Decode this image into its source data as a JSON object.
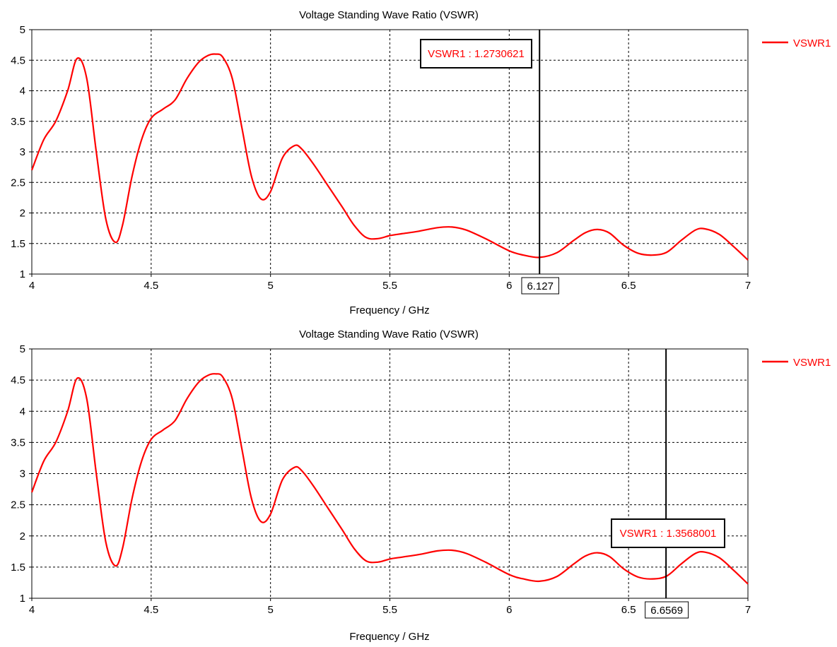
{
  "charts": [
    {
      "title": "Voltage Standing Wave Ratio (VSWR)",
      "xlabel": "Frequency / GHz",
      "legend": "VSWR1",
      "marker": {
        "label": "VSWR1 : 1.2730621",
        "x_label": "6.127"
      }
    },
    {
      "title": "Voltage Standing Wave Ratio (VSWR)",
      "xlabel": "Frequency / GHz",
      "legend": "VSWR1",
      "marker": {
        "label": "VSWR1 : 1.3568001",
        "x_label": "6.6569"
      }
    }
  ],
  "chart_data": [
    {
      "type": "line",
      "title": "Voltage Standing Wave Ratio (VSWR)",
      "xlabel": "Frequency / GHz",
      "ylabel": "",
      "xlim": [
        4,
        7
      ],
      "ylim": [
        1,
        5
      ],
      "x_ticks": [
        "4",
        "4.5",
        "5",
        "5.5",
        "6",
        "6.5",
        "7"
      ],
      "y_ticks": [
        "1",
        "1.5",
        "2",
        "2.5",
        "3",
        "3.5",
        "4",
        "4.5",
        "5"
      ],
      "grid": true,
      "legend_position": "right",
      "line_color": "#ff0000",
      "series": [
        {
          "name": "VSWR1",
          "x": [
            4.0,
            4.05,
            4.1,
            4.15,
            4.19,
            4.23,
            4.27,
            4.31,
            4.35,
            4.38,
            4.42,
            4.46,
            4.5,
            4.55,
            4.6,
            4.65,
            4.7,
            4.74,
            4.77,
            4.8,
            4.84,
            4.88,
            4.92,
            4.96,
            5.0,
            5.05,
            5.1,
            5.13,
            5.18,
            5.24,
            5.3,
            5.35,
            5.4,
            5.45,
            5.5,
            5.55,
            5.62,
            5.7,
            5.76,
            5.82,
            5.9,
            6.0,
            6.06,
            6.127,
            6.2,
            6.27,
            6.32,
            6.37,
            6.42,
            6.48,
            6.54,
            6.6,
            6.66,
            6.72,
            6.78,
            6.82,
            6.88,
            6.94,
            7.0
          ],
          "y": [
            2.7,
            3.2,
            3.5,
            4.0,
            4.53,
            4.2,
            3.0,
            1.9,
            1.52,
            1.8,
            2.6,
            3.2,
            3.55,
            3.7,
            3.85,
            4.2,
            4.47,
            4.58,
            4.6,
            4.55,
            4.2,
            3.4,
            2.6,
            2.23,
            2.35,
            2.9,
            3.1,
            3.05,
            2.8,
            2.45,
            2.1,
            1.8,
            1.6,
            1.58,
            1.63,
            1.66,
            1.7,
            1.76,
            1.77,
            1.72,
            1.58,
            1.38,
            1.31,
            1.273,
            1.35,
            1.55,
            1.68,
            1.73,
            1.67,
            1.47,
            1.34,
            1.31,
            1.357,
            1.55,
            1.72,
            1.74,
            1.65,
            1.45,
            1.23
          ]
        }
      ],
      "marker": {
        "x": 6.127,
        "y": 1.2730621,
        "label": "VSWR1 : 1.2730621",
        "x_label": "6.127"
      }
    },
    {
      "type": "line",
      "title": "Voltage Standing Wave Ratio (VSWR)",
      "xlabel": "Frequency / GHz",
      "ylabel": "",
      "xlim": [
        4,
        7
      ],
      "ylim": [
        1,
        5
      ],
      "x_ticks": [
        "4",
        "4.5",
        "5",
        "5.5",
        "6",
        "6.5",
        "7"
      ],
      "y_ticks": [
        "1",
        "1.5",
        "2",
        "2.5",
        "3",
        "3.5",
        "4",
        "4.5",
        "5"
      ],
      "grid": true,
      "legend_position": "right",
      "line_color": "#ff0000",
      "series": [
        {
          "name": "VSWR1",
          "x": [
            4.0,
            4.05,
            4.1,
            4.15,
            4.19,
            4.23,
            4.27,
            4.31,
            4.35,
            4.38,
            4.42,
            4.46,
            4.5,
            4.55,
            4.6,
            4.65,
            4.7,
            4.74,
            4.77,
            4.8,
            4.84,
            4.88,
            4.92,
            4.96,
            5.0,
            5.05,
            5.1,
            5.13,
            5.18,
            5.24,
            5.3,
            5.35,
            5.4,
            5.45,
            5.5,
            5.55,
            5.62,
            5.7,
            5.76,
            5.82,
            5.9,
            6.0,
            6.06,
            6.127,
            6.2,
            6.27,
            6.32,
            6.37,
            6.42,
            6.48,
            6.54,
            6.6,
            6.66,
            6.72,
            6.78,
            6.82,
            6.88,
            6.94,
            7.0
          ],
          "y": [
            2.7,
            3.2,
            3.5,
            4.0,
            4.53,
            4.2,
            3.0,
            1.9,
            1.52,
            1.8,
            2.6,
            3.2,
            3.55,
            3.7,
            3.85,
            4.2,
            4.47,
            4.58,
            4.6,
            4.55,
            4.2,
            3.4,
            2.6,
            2.23,
            2.35,
            2.9,
            3.1,
            3.05,
            2.8,
            2.45,
            2.1,
            1.8,
            1.6,
            1.58,
            1.63,
            1.66,
            1.7,
            1.76,
            1.77,
            1.72,
            1.58,
            1.38,
            1.31,
            1.273,
            1.35,
            1.55,
            1.68,
            1.73,
            1.67,
            1.47,
            1.34,
            1.31,
            1.357,
            1.55,
            1.72,
            1.74,
            1.65,
            1.45,
            1.23
          ]
        }
      ],
      "marker": {
        "x": 6.6569,
        "y": 1.3568001,
        "label": "VSWR1 : 1.3568001",
        "x_label": "6.6569"
      }
    }
  ]
}
